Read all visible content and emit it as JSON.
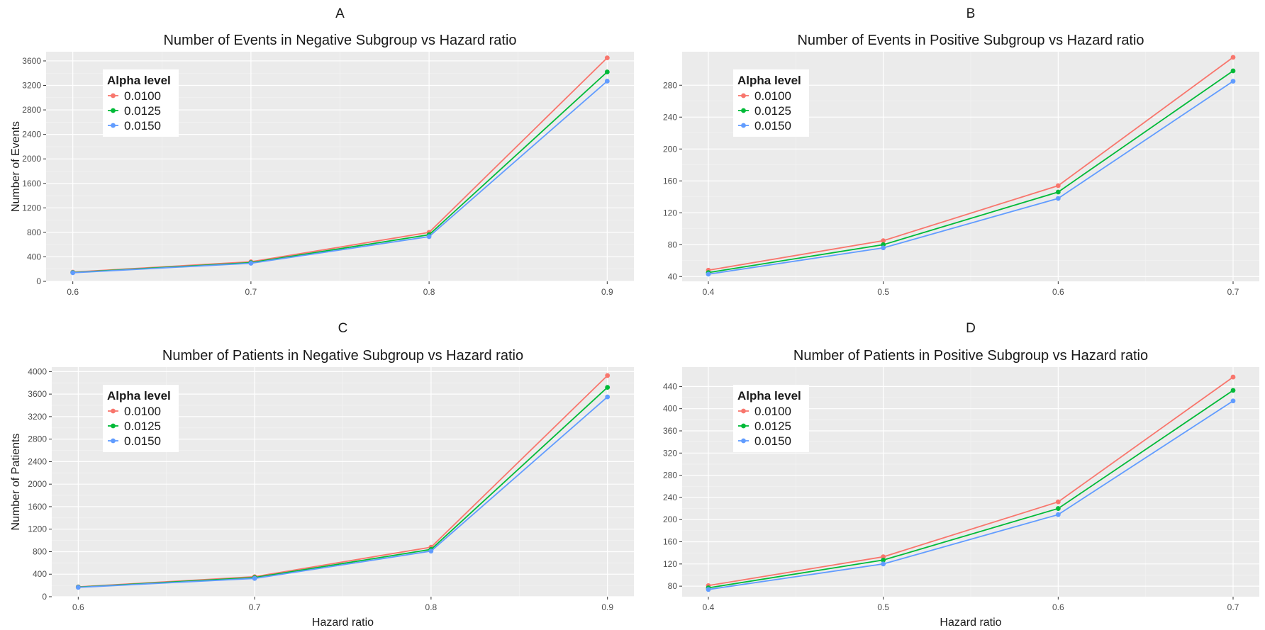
{
  "chart_data": [
    {
      "type": "line",
      "tag": "A",
      "title": "Number of Events in Negative Subgroup vs Hazard ratio",
      "xlabel": "",
      "ylabel": "Number of Events",
      "x": [
        0.6,
        0.7,
        0.8,
        0.9
      ],
      "x_ticks": [
        "0.6",
        "0.7",
        "0.8",
        "0.9"
      ],
      "y_ticks": [
        0,
        400,
        800,
        1200,
        1600,
        2000,
        2400,
        2800,
        3200,
        3600
      ],
      "xlim": [
        0.585,
        0.915
      ],
      "ylim": [
        0,
        3750
      ],
      "legend_title": "Alpha level",
      "legend_position": "top-left",
      "series": [
        {
          "name": "0.0100",
          "color": "#F8766D",
          "values": [
            150,
            320,
            800,
            3650
          ]
        },
        {
          "name": "0.0125",
          "color": "#00BA38",
          "values": [
            145,
            305,
            760,
            3420
          ]
        },
        {
          "name": "0.0150",
          "color": "#619CFF",
          "values": [
            140,
            295,
            730,
            3270
          ]
        }
      ]
    },
    {
      "type": "line",
      "tag": "B",
      "title": "Number of Events in Positive Subgroup vs Hazard ratio",
      "xlabel": "",
      "ylabel": "",
      "x": [
        0.4,
        0.5,
        0.6,
        0.7
      ],
      "x_ticks": [
        "0.4",
        "0.5",
        "0.6",
        "0.7"
      ],
      "y_ticks": [
        40,
        80,
        120,
        160,
        200,
        240,
        280
      ],
      "xlim": [
        0.385,
        0.715
      ],
      "ylim": [
        34,
        322
      ],
      "legend_title": "Alpha level",
      "legend_position": "top-left",
      "series": [
        {
          "name": "0.0100",
          "color": "#F8766D",
          "values": [
            48,
            85,
            154,
            315
          ]
        },
        {
          "name": "0.0125",
          "color": "#00BA38",
          "values": [
            45,
            80,
            146,
            298
          ]
        },
        {
          "name": "0.0150",
          "color": "#619CFF",
          "values": [
            43,
            76,
            138,
            285
          ]
        }
      ]
    },
    {
      "type": "line",
      "tag": "C",
      "title": "Number of Patients in Negative Subgroup vs Hazard ratio",
      "xlabel": "Hazard ratio",
      "ylabel": "Number of Patients",
      "x": [
        0.6,
        0.7,
        0.8,
        0.9
      ],
      "x_ticks": [
        "0.6",
        "0.7",
        "0.8",
        "0.9"
      ],
      "y_ticks": [
        0,
        400,
        800,
        1200,
        1600,
        2000,
        2400,
        2800,
        3200,
        3600,
        4000
      ],
      "xlim": [
        0.585,
        0.915
      ],
      "ylim": [
        0,
        4080
      ],
      "legend_title": "Alpha level",
      "legend_position": "top-left",
      "series": [
        {
          "name": "0.0100",
          "color": "#F8766D",
          "values": [
            175,
            355,
            880,
            3930
          ]
        },
        {
          "name": "0.0125",
          "color": "#00BA38",
          "values": [
            170,
            340,
            840,
            3720
          ]
        },
        {
          "name": "0.0150",
          "color": "#619CFF",
          "values": [
            165,
            325,
            810,
            3550
          ]
        }
      ]
    },
    {
      "type": "line",
      "tag": "D",
      "title": "Number of Patients in Positive Subgroup vs Hazard ratio",
      "xlabel": "Hazard ratio",
      "ylabel": "",
      "x": [
        0.4,
        0.5,
        0.6,
        0.7
      ],
      "x_ticks": [
        "0.4",
        "0.5",
        "0.6",
        "0.7"
      ],
      "y_ticks": [
        80,
        120,
        160,
        200,
        240,
        280,
        320,
        360,
        400,
        440
      ],
      "xlim": [
        0.385,
        0.715
      ],
      "ylim": [
        61,
        475
      ],
      "legend_title": "Alpha level",
      "legend_position": "top-left",
      "series": [
        {
          "name": "0.0100",
          "color": "#F8766D",
          "values": [
            81,
            133,
            232,
            457
          ]
        },
        {
          "name": "0.0125",
          "color": "#00BA38",
          "values": [
            77,
            127,
            220,
            433
          ]
        },
        {
          "name": "0.0150",
          "color": "#619CFF",
          "values": [
            74,
            120,
            209,
            414
          ]
        }
      ]
    }
  ]
}
